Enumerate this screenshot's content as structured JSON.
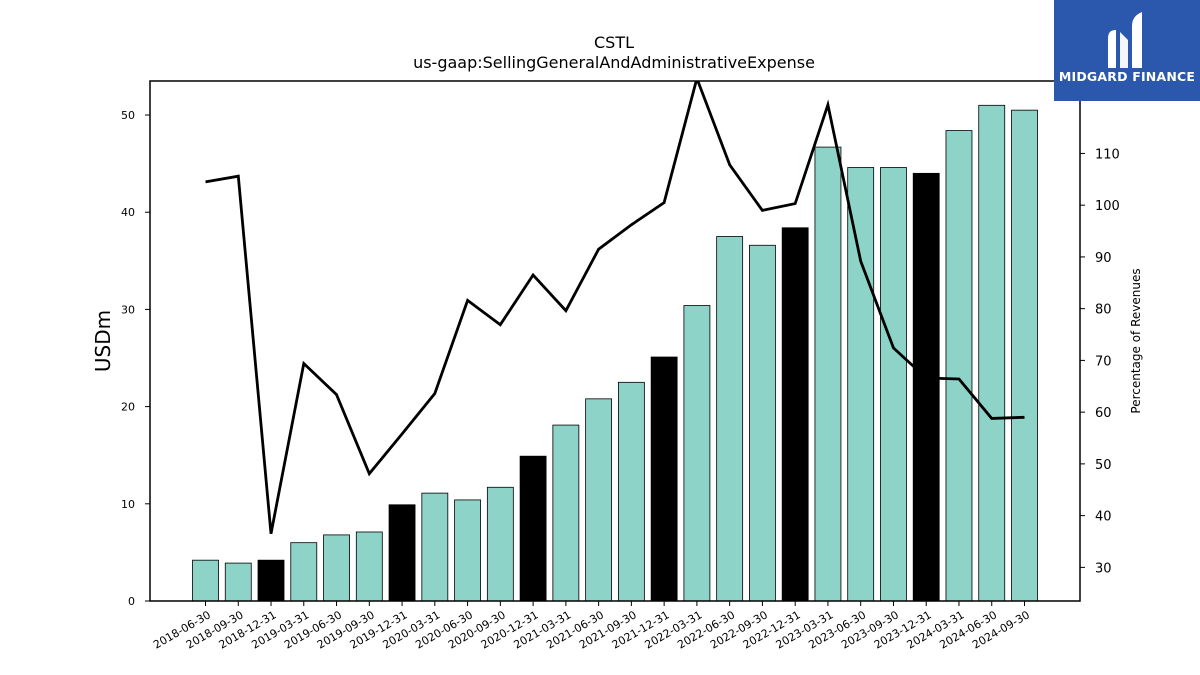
{
  "chart_data": {
    "type": "bar",
    "title": "CSTL",
    "subtitle": "us-gaap:SellingGeneralAndAdministrativeExpense",
    "ylabel": "USDm",
    "y2label": "Percentage of Revenues",
    "ylim": [
      0,
      53.5
    ],
    "y2lim": [
      23.5,
      124
    ],
    "yticks": [
      0,
      10,
      20,
      30,
      40,
      50
    ],
    "y2ticks": [
      30,
      40,
      50,
      60,
      70,
      80,
      90,
      100,
      110
    ],
    "categories": [
      "2018-06-30",
      "2018-09-30",
      "2018-12-31",
      "2019-03-31",
      "2019-06-30",
      "2019-09-30",
      "2019-12-31",
      "2020-03-31",
      "2020-06-30",
      "2020-09-30",
      "2020-12-31",
      "2021-03-31",
      "2021-06-30",
      "2021-09-30",
      "2021-12-31",
      "2022-03-31",
      "2022-06-30",
      "2022-09-30",
      "2022-12-31",
      "2023-03-31",
      "2023-06-30",
      "2023-09-30",
      "2023-12-31",
      "2024-03-31",
      "2024-06-30",
      "2024-09-30"
    ],
    "series": [
      {
        "type": "bar",
        "values": [
          4.2,
          3.9,
          4.2,
          6.0,
          6.8,
          7.1,
          9.9,
          11.1,
          10.4,
          11.7,
          14.9,
          18.1,
          20.8,
          22.5,
          25.1,
          30.4,
          37.5,
          36.6,
          38.4,
          46.7,
          44.6,
          44.6,
          44.0,
          48.4,
          51.0,
          50.5
        ],
        "colors": [
          "#8dd3c7",
          "#8dd3c7",
          "#000000",
          "#8dd3c7",
          "#8dd3c7",
          "#8dd3c7",
          "#000000",
          "#8dd3c7",
          "#8dd3c7",
          "#8dd3c7",
          "#000000",
          "#8dd3c7",
          "#8dd3c7",
          "#8dd3c7",
          "#000000",
          "#8dd3c7",
          "#8dd3c7",
          "#8dd3c7",
          "#000000",
          "#8dd3c7",
          "#8dd3c7",
          "#8dd3c7",
          "#000000",
          "#8dd3c7",
          "#8dd3c7",
          "#8dd3c7"
        ]
      },
      {
        "type": "line",
        "axis": "right",
        "color": "#000000",
        "values": [
          104.5,
          105.6,
          36.5,
          69.4,
          63.4,
          48.1,
          55.8,
          63.6,
          81.6,
          76.9,
          86.5,
          79.6,
          91.5,
          96.2,
          100.5,
          124.5,
          107.8,
          99.0,
          100.3,
          119.4,
          89.2,
          72.4,
          66.6,
          66.4,
          58.8,
          59.0
        ]
      }
    ],
    "grid": false,
    "legend": "none"
  },
  "logo": {
    "text": "MIDGARD FINANCE"
  }
}
